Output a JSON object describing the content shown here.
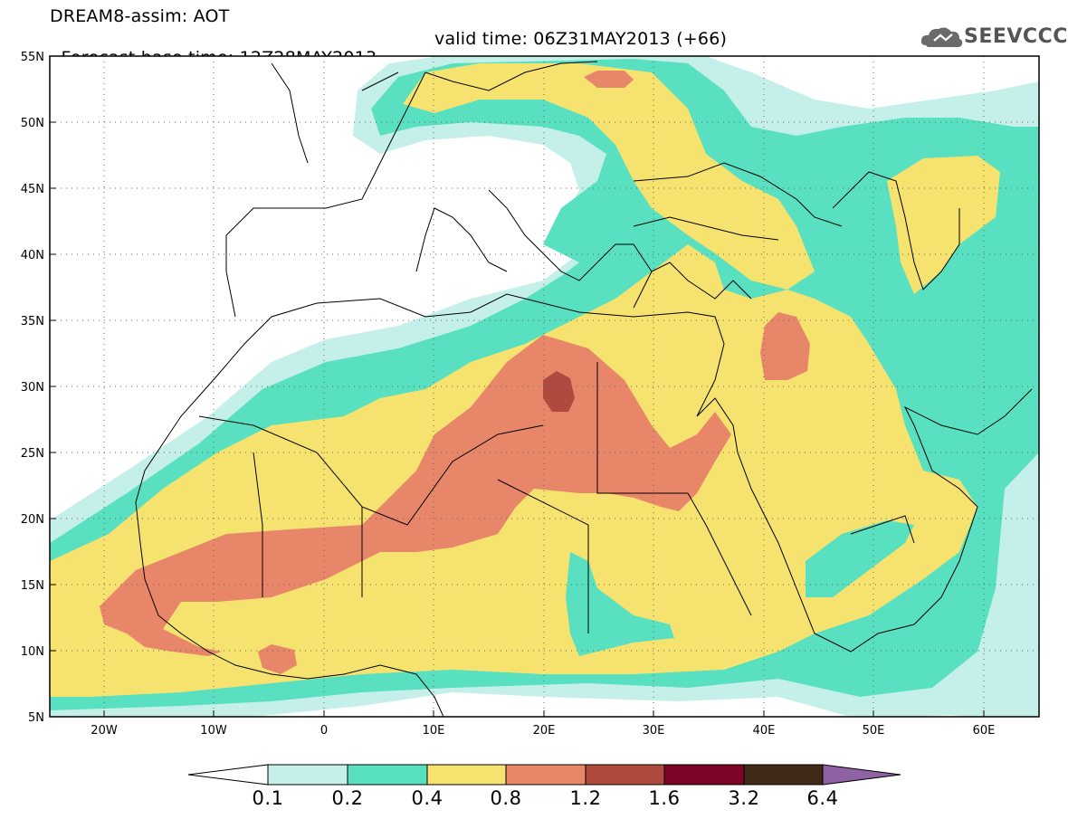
{
  "header": {
    "title": "DREAM8-assim: AOT",
    "base_time": "Forecast base time: 12Z28MAY2013",
    "valid_time": "valid time: 06Z31MAY2013 (+66)"
  },
  "logo": {
    "text": "SEEVCCC",
    "icon": "cloud-icon"
  },
  "map": {
    "variable": "AOT",
    "lon_range": [
      -25,
      65
    ],
    "lat_range": [
      5,
      55
    ],
    "grid": "dotted",
    "lon_ticks": [
      "20W",
      "10W",
      "0",
      "10E",
      "20E",
      "30E",
      "40E",
      "50E",
      "60E"
    ],
    "lat_ticks": [
      "5N",
      "10N",
      "15N",
      "20N",
      "25N",
      "30N",
      "35N",
      "40N",
      "45N",
      "50N",
      "55N"
    ]
  },
  "colorbar": {
    "labels": [
      "0.1",
      "0.2",
      "0.4",
      "0.8",
      "1.2",
      "1.6",
      "3.2",
      "6.4"
    ],
    "colors": [
      "#ffffff",
      "#c5f0ea",
      "#58e0c0",
      "#f6e26e",
      "#e8866a",
      "#b04a3e",
      "#7e0428",
      "#3e2a16",
      "#8f62a3"
    ]
  }
}
